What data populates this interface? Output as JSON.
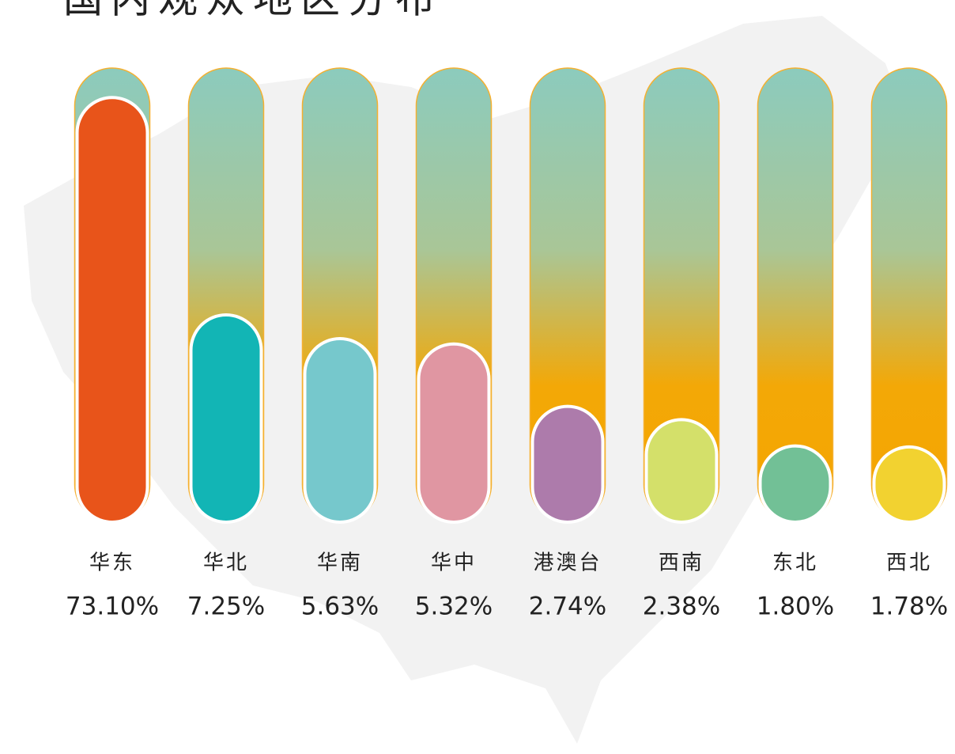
{
  "chart_data": {
    "type": "bar",
    "title": "国内观众地区分布",
    "categories": [
      "华东",
      "华北",
      "华南",
      "华中",
      "港澳台",
      "西南",
      "东北",
      "西北"
    ],
    "values": [
      73.1,
      7.25,
      5.63,
      5.32,
      2.74,
      2.38,
      1.8,
      1.78
    ],
    "value_labels": [
      "73.10%",
      "7.25%",
      "5.63%",
      "5.32%",
      "2.74%",
      "2.38%",
      "1.80%",
      "1.78%"
    ],
    "colors": [
      "#e8541a",
      "#12b5b5",
      "#76c8cc",
      "#e096a2",
      "#ad7bab",
      "#d4e06a",
      "#72c096",
      "#f2d230"
    ],
    "ylim": [
      0.8,
      100
    ],
    "log_scale": true
  }
}
